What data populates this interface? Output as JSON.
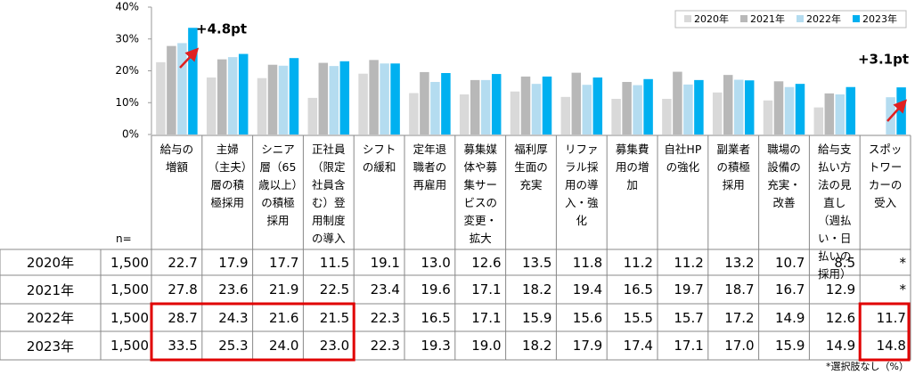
{
  "chart_data": {
    "type": "bar",
    "ylim": [
      0,
      40
    ],
    "yticks": [
      {
        "value": 0,
        "label": "0%"
      },
      {
        "value": 10,
        "label": "10%"
      },
      {
        "value": 20,
        "label": "20%"
      },
      {
        "value": 30,
        "label": "30%"
      },
      {
        "value": 40,
        "label": "40%"
      }
    ],
    "grid": false,
    "legend": "top-right",
    "categories": [
      "給与の増額",
      "主婦（主夫）層の積極採用",
      "シニア層（65歳以上）の積極採用",
      "正社員（限定社員含む）登用制度の導入",
      "シフトの緩和",
      "定年退職者の再雇用",
      "募集媒体や募集サービスの変更・拡大",
      "福利厚生面の充実",
      "リファラル採用の導入・強化",
      "募集費用の増加",
      "自社HPの強化",
      "副業者の積極採用",
      "職場の設備の充実・改善",
      "給与支払い方法の見直し（週払い・日払いの採用）",
      "スポットワーカーの受入"
    ],
    "n_label": "n=",
    "series": [
      {
        "name": "2020年",
        "color": "#d9d9d9",
        "n": "1,500",
        "values": [
          22.7,
          17.9,
          17.7,
          11.5,
          19.1,
          13.0,
          12.6,
          13.5,
          11.8,
          11.2,
          11.2,
          13.2,
          10.7,
          8.5,
          null
        ],
        "value_labels": [
          "22.7",
          "17.9",
          "17.7",
          "11.5",
          "19.1",
          "13.0",
          "12.6",
          "13.5",
          "11.8",
          "11.2",
          "11.2",
          "13.2",
          "10.7",
          "8.5",
          "*"
        ]
      },
      {
        "name": "2021年",
        "color": "#b8b8b8",
        "n": "1,500",
        "values": [
          27.8,
          23.6,
          21.9,
          22.5,
          23.4,
          19.6,
          17.1,
          18.2,
          19.4,
          16.5,
          19.7,
          18.7,
          16.7,
          12.9,
          null
        ],
        "value_labels": [
          "27.8",
          "23.6",
          "21.9",
          "22.5",
          "23.4",
          "19.6",
          "17.1",
          "18.2",
          "19.4",
          "16.5",
          "19.7",
          "18.7",
          "16.7",
          "12.9",
          "*"
        ]
      },
      {
        "name": "2022年",
        "color": "#b4dcf0",
        "n": "1,500",
        "values": [
          28.7,
          24.3,
          21.6,
          21.5,
          22.3,
          16.5,
          17.1,
          15.9,
          15.6,
          15.5,
          15.7,
          17.2,
          14.9,
          12.6,
          11.7
        ],
        "value_labels": [
          "28.7",
          "24.3",
          "21.6",
          "21.5",
          "22.3",
          "16.5",
          "17.1",
          "15.9",
          "15.6",
          "15.5",
          "15.7",
          "17.2",
          "14.9",
          "12.6",
          "11.7"
        ]
      },
      {
        "name": "2023年",
        "color": "#00b0f0",
        "n": "1,500",
        "values": [
          33.5,
          25.3,
          24.0,
          23.0,
          22.3,
          19.3,
          19.0,
          18.2,
          17.9,
          17.4,
          17.1,
          17.0,
          15.9,
          14.9,
          14.8
        ],
        "value_labels": [
          "33.5",
          "25.3",
          "24.0",
          "23.0",
          "22.3",
          "19.3",
          "19.0",
          "18.2",
          "17.9",
          "17.4",
          "17.1",
          "17.0",
          "15.9",
          "14.9",
          "14.8"
        ]
      }
    ],
    "annotations": [
      "+4.8pt",
      "+3.1pt"
    ],
    "footnote": "*選択肢なし（%）"
  }
}
